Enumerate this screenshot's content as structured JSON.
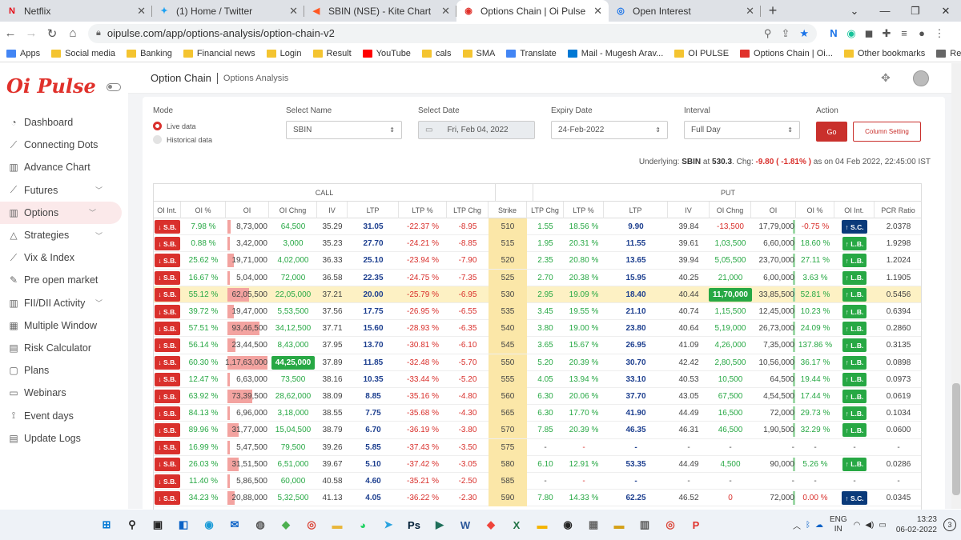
{
  "tabs": [
    {
      "title": "Netflix",
      "icon": "netflix-icon",
      "color": "#e50914",
      "glyph": "N"
    },
    {
      "title": "(1) Home / Twitter",
      "icon": "twitter-icon",
      "color": "#1da1f2",
      "glyph": "✦"
    },
    {
      "title": "SBIN (NSE) - Kite Chart",
      "icon": "kite-icon",
      "color": "#ff5722",
      "glyph": "◀"
    },
    {
      "title": "Options Chain | Oi Pulse",
      "icon": "oipulse-icon",
      "color": "#e0312b",
      "glyph": "◉"
    },
    {
      "title": "Open Interest",
      "icon": "globe-icon",
      "color": "#1a73e8",
      "glyph": "◎"
    }
  ],
  "address": {
    "url": "oipulse.com/app/options-analysis/option-chain-v2"
  },
  "bookmarks": [
    {
      "label": "Apps",
      "icon": "apps-icon",
      "color": "#4285f4"
    },
    {
      "label": "Social media",
      "icon": "folder-icon",
      "color": "#f4c430"
    },
    {
      "label": "Banking",
      "icon": "folder-icon",
      "color": "#f4c430"
    },
    {
      "label": "Financial news",
      "icon": "folder-icon",
      "color": "#f4c430"
    },
    {
      "label": "Login",
      "icon": "folder-icon",
      "color": "#f4c430"
    },
    {
      "label": "Result",
      "icon": "folder-icon",
      "color": "#f4c430"
    },
    {
      "label": "YouTube",
      "icon": "youtube-icon",
      "color": "#ff0000"
    },
    {
      "label": "cals",
      "icon": "folder-icon",
      "color": "#f4c430"
    },
    {
      "label": "SMA",
      "icon": "folder-icon",
      "color": "#f4c430"
    },
    {
      "label": "Translate",
      "icon": "translate-icon",
      "color": "#4285f4"
    },
    {
      "label": "Mail - Mugesh Arav...",
      "icon": "outlook-icon",
      "color": "#0078d4"
    },
    {
      "label": "OI PULSE",
      "icon": "folder-icon",
      "color": "#f4c430"
    },
    {
      "label": "Options Chain | Oi...",
      "icon": "oipulse-icon",
      "color": "#e0312b"
    }
  ],
  "bookmarks_right": [
    {
      "label": "Other bookmarks",
      "icon": "folder-icon",
      "color": "#f4c430"
    },
    {
      "label": "Reading list",
      "icon": "reading-list-icon",
      "color": "#666666"
    }
  ],
  "sidebar": {
    "logo": "Oi Pulse",
    "items": [
      {
        "label": "Dashboard",
        "icon": "dashboard-icon",
        "glyph": "◔",
        "chev": false
      },
      {
        "label": "Connecting Dots",
        "icon": "line-chart-icon",
        "glyph": "⟋",
        "chev": false
      },
      {
        "label": "Advance Chart",
        "icon": "bar-chart-icon",
        "glyph": "▥",
        "chev": false
      },
      {
        "label": "Futures",
        "icon": "futures-chart-icon",
        "glyph": "⟋",
        "chev": true
      },
      {
        "label": "Options",
        "icon": "options-chart-icon",
        "glyph": "▥",
        "chev": true,
        "active": true
      },
      {
        "label": "Strategies",
        "icon": "strategies-icon",
        "glyph": "△",
        "chev": true
      },
      {
        "label": "Vix & Index",
        "icon": "vix-icon",
        "glyph": "⟋",
        "chev": false
      },
      {
        "label": "Pre open market",
        "icon": "pre-open-icon",
        "glyph": "✎",
        "chev": false
      },
      {
        "label": "FII/DII Activity",
        "icon": "fii-dii-icon",
        "glyph": "▥",
        "chev": true
      },
      {
        "label": "Multiple Window",
        "icon": "multi-window-icon",
        "glyph": "▦",
        "chev": false
      },
      {
        "label": "Risk Calculator",
        "icon": "calculator-icon",
        "glyph": "▤",
        "chev": false
      },
      {
        "label": "Plans",
        "icon": "plans-icon",
        "glyph": "▢",
        "chev": false
      },
      {
        "label": "Webinars",
        "icon": "webinar-icon",
        "glyph": "▭",
        "chev": false
      },
      {
        "label": "Event days",
        "icon": "event-icon",
        "glyph": "⟟",
        "chev": false
      },
      {
        "label": "Update Logs",
        "icon": "logs-icon",
        "glyph": "▤",
        "chev": false
      }
    ]
  },
  "page": {
    "title": "Option Chain",
    "subtitle": "Options Analysis"
  },
  "filters": {
    "mode_label": "Mode",
    "mode_live": "Live data",
    "mode_hist": "Historical data",
    "name_label": "Select Name",
    "name_value": "SBIN",
    "date_label": "Select Date",
    "date_value": "Fri, Feb 04, 2022",
    "expiry_label": "Expiry Date",
    "expiry_value": "24-Feb-2022",
    "interval_label": "Interval",
    "interval_value": "Full Day",
    "action_label": "Action",
    "go_label": "Go",
    "column_label": "Column Setting"
  },
  "underlying": {
    "prefix": "Underlying:",
    "symbol": "SBIN",
    "at": "at",
    "price": "530.3",
    "chg_label": ". Chg:",
    "chg": "-9.80 ( -1.81% )",
    "suffix": "as on 04 Feb 2022, 22:45:00 IST"
  },
  "table": {
    "call_label": "CALL",
    "put_label": "PUT",
    "columns": [
      "OI Int.",
      "OI %",
      "OI",
      "OI Chng",
      "IV",
      "LTP",
      "LTP %",
      "LTP Chg",
      "Strike",
      "LTP Chg",
      "LTP %",
      "LTP",
      "IV",
      "OI Chng",
      "OI",
      "OI %",
      "OI Int.",
      "PCR Ratio"
    ],
    "rows": [
      {
        "cint": "↓ S.B.",
        "coip": "7.98 %",
        "coi": "8,73,000",
        "coil": 0.07,
        "coic": "64,500",
        "civ": "35.29",
        "cltp": "31.05",
        "cltpp": "-22.37 %",
        "cltpc": "-8.95",
        "strike": "510",
        "pltpc": "1.55",
        "pltpp": "18.56 %",
        "pltp": "9.90",
        "piv": "39.84",
        "poic": "-13,500",
        "poi": "17,79,000",
        "poil": 0.0,
        "poip": "-0.75 %",
        "pint": "↑ S.C.",
        "pint_t": "sc",
        "pcr": "2.0378",
        "pneg": true
      },
      {
        "cint": "↓ S.B.",
        "coip": "0.88 %",
        "coi": "3,42,000",
        "coil": 0.03,
        "coic": "3,000",
        "civ": "35.23",
        "cltp": "27.70",
        "cltpp": "-24.21 %",
        "cltpc": "-8.85",
        "strike": "515",
        "pltpc": "1.95",
        "pltpp": "20.31 %",
        "pltp": "11.55",
        "piv": "39.61",
        "poic": "1,03,500",
        "poi": "6,60,000",
        "poil": 0.02,
        "poip": "18.60 %",
        "pint": "↑ L.B.",
        "pint_t": "lb",
        "pcr": "1.9298"
      },
      {
        "cint": "↓ S.B.",
        "coip": "25.62 %",
        "coi": "19,71,000",
        "coil": 0.16,
        "coic": "4,02,000",
        "civ": "36.33",
        "cltp": "25.10",
        "cltpp": "-23.94 %",
        "cltpc": "-7.90",
        "strike": "520",
        "pltpc": "2.35",
        "pltpp": "20.80 %",
        "pltp": "13.65",
        "piv": "39.94",
        "poic": "5,05,500",
        "poi": "23,70,000",
        "poil": 0.06,
        "poip": "27.11 %",
        "pint": "↑ L.B.",
        "pint_t": "lb",
        "pcr": "1.2024"
      },
      {
        "cint": "↓ S.B.",
        "coip": "16.67 %",
        "coi": "5,04,000",
        "coil": 0.04,
        "coic": "72,000",
        "civ": "36.58",
        "cltp": "22.35",
        "cltpp": "-24.75 %",
        "cltpc": "-7.35",
        "strike": "525",
        "pltpc": "2.70",
        "pltpp": "20.38 %",
        "pltp": "15.95",
        "piv": "40.25",
        "poic": "21,000",
        "poi": "6,00,000",
        "poil": 0.02,
        "poip": "3.63 %",
        "pint": "↑ L.B.",
        "pint_t": "lb",
        "pcr": "1.1905"
      },
      {
        "cint": "↓ S.B.",
        "coip": "55.12 %",
        "coi": "62,05,500",
        "coil": 0.53,
        "coic": "22,05,000",
        "civ": "37.21",
        "cltp": "20.00",
        "cltpp": "-25.79 %",
        "cltpc": "-6.95",
        "strike": "530",
        "pltpc": "2.95",
        "pltpp": "19.09 %",
        "pltp": "18.40",
        "piv": "40.44",
        "poic": "11,70,000",
        "poichi": true,
        "poi": "33,85,500",
        "poil": 0.08,
        "poip": "52.81 %",
        "pint": "↑ L.B.",
        "pint_t": "lb",
        "pcr": "0.5456",
        "atm": true
      },
      {
        "cint": "↓ S.B.",
        "coip": "39.72 %",
        "coi": "19,47,000",
        "coil": 0.16,
        "coic": "5,53,500",
        "civ": "37.56",
        "cltp": "17.75",
        "cltpp": "-26.95 %",
        "cltpc": "-6.55",
        "strike": "535",
        "pltpc": "3.45",
        "pltpp": "19.55 %",
        "pltp": "21.10",
        "piv": "40.74",
        "poic": "1,15,500",
        "poi": "12,45,000",
        "poil": 0.03,
        "poip": "10.23 %",
        "pint": "↑ L.B.",
        "pint_t": "lb",
        "pcr": "0.6394"
      },
      {
        "cint": "↓ S.B.",
        "coip": "57.51 %",
        "coi": "93,46,500",
        "coil": 0.8,
        "coic": "34,12,500",
        "civ": "37.71",
        "cltp": "15.60",
        "cltpp": "-28.93 %",
        "cltpc": "-6.35",
        "strike": "540",
        "pltpc": "3.80",
        "pltpp": "19.00 %",
        "pltp": "23.80",
        "piv": "40.64",
        "poic": "5,19,000",
        "poi": "26,73,000",
        "poil": 0.07,
        "poip": "24.09 %",
        "pint": "↑ L.B.",
        "pint_t": "lb",
        "pcr": "0.2860"
      },
      {
        "cint": "↓ S.B.",
        "coip": "56.14 %",
        "coi": "23,44,500",
        "coil": 0.2,
        "coic": "8,43,000",
        "civ": "37.95",
        "cltp": "13.70",
        "cltpp": "-30.81 %",
        "cltpc": "-6.10",
        "strike": "545",
        "pltpc": "3.65",
        "pltpp": "15.67 %",
        "pltp": "26.95",
        "piv": "41.09",
        "poic": "4,26,000",
        "poi": "7,35,000",
        "poil": 0.02,
        "poip": "137.86 %",
        "pint": "↑ L.B.",
        "pint_t": "lb",
        "pcr": "0.3135"
      },
      {
        "cint": "↓ S.B.",
        "coip": "60.30 %",
        "coi": "1,17,63,000",
        "coil": 1.0,
        "coic": "44,25,000",
        "coichi": true,
        "civ": "37.89",
        "cltp": "11.85",
        "cltpp": "-32.48 %",
        "cltpc": "-5.70",
        "strike": "550",
        "pltpc": "5.20",
        "pltpp": "20.39 %",
        "pltp": "30.70",
        "piv": "42.42",
        "poic": "2,80,500",
        "poi": "10,56,000",
        "poil": 0.03,
        "poip": "36.17 %",
        "pint": "↑ L.B.",
        "pint_t": "lb",
        "pcr": "0.0898"
      },
      {
        "cint": "↓ S.B.",
        "coip": "12.47 %",
        "coi": "6,63,000",
        "coil": 0.05,
        "coic": "73,500",
        "civ": "38.16",
        "cltp": "10.35",
        "cltpp": "-33.44 %",
        "cltpc": "-5.20",
        "strike": "555",
        "pltpc": "4.05",
        "pltpp": "13.94 %",
        "pltp": "33.10",
        "piv": "40.53",
        "poic": "10,500",
        "poi": "64,500",
        "poil": 0.0,
        "poip": "19.44 %",
        "pint": "↑ L.B.",
        "pint_t": "lb",
        "pcr": "0.0973"
      },
      {
        "cint": "↓ S.B.",
        "coip": "63.92 %",
        "coi": "73,39,500",
        "coil": 0.62,
        "coic": "28,62,000",
        "civ": "38.09",
        "cltp": "8.85",
        "cltpp": "-35.16 %",
        "cltpc": "-4.80",
        "strike": "560",
        "pltpc": "6.30",
        "pltpp": "20.06 %",
        "pltp": "37.70",
        "piv": "43.05",
        "poic": "67,500",
        "poi": "4,54,500",
        "poil": 0.01,
        "poip": "17.44 %",
        "pint": "↑ L.B.",
        "pint_t": "lb",
        "pcr": "0.0619"
      },
      {
        "cint": "↓ S.B.",
        "coip": "84.13 %",
        "coi": "6,96,000",
        "coil": 0.06,
        "coic": "3,18,000",
        "civ": "38.55",
        "cltp": "7.75",
        "cltpp": "-35.68 %",
        "cltpc": "-4.30",
        "strike": "565",
        "pltpc": "6.30",
        "pltpp": "17.70 %",
        "pltp": "41.90",
        "piv": "44.49",
        "poic": "16,500",
        "poi": "72,000",
        "poil": 0.0,
        "poip": "29.73 %",
        "pint": "↑ L.B.",
        "pint_t": "lb",
        "pcr": "0.1034"
      },
      {
        "cint": "↓ S.B.",
        "coip": "89.96 %",
        "coi": "31,77,000",
        "coil": 0.27,
        "coic": "15,04,500",
        "civ": "38.79",
        "cltp": "6.70",
        "cltpp": "-36.19 %",
        "cltpc": "-3.80",
        "strike": "570",
        "pltpc": "7.85",
        "pltpp": "20.39 %",
        "pltp": "46.35",
        "piv": "46.31",
        "poic": "46,500",
        "poi": "1,90,500",
        "poil": 0.01,
        "poip": "32.29 %",
        "pint": "↑ L.B.",
        "pint_t": "lb",
        "pcr": "0.0600"
      },
      {
        "cint": "↓ S.B.",
        "coip": "16.99 %",
        "coi": "5,47,500",
        "coil": 0.04,
        "coic": "79,500",
        "civ": "39.26",
        "cltp": "5.85",
        "cltpp": "-37.43 %",
        "cltpc": "-3.50",
        "strike": "575",
        "pltpc": "-",
        "pltpp": "-",
        "pltp": "-",
        "piv": "-",
        "poic": "-",
        "poi": "-",
        "poil": 0.0,
        "poip": "-",
        "pint": "-",
        "pint_t": "none",
        "pcr": "-",
        "pdash": true
      },
      {
        "cint": "↓ S.B.",
        "coip": "26.03 %",
        "coi": "31,51,500",
        "coil": 0.27,
        "coic": "6,51,000",
        "civ": "39.67",
        "cltp": "5.10",
        "cltpp": "-37.42 %",
        "cltpc": "-3.05",
        "strike": "580",
        "pltpc": "6.10",
        "pltpp": "12.91 %",
        "pltp": "53.35",
        "piv": "44.49",
        "poic": "4,500",
        "poi": "90,000",
        "poil": 0.0,
        "poip": "5.26 %",
        "pint": "↑ L.B.",
        "pint_t": "lb",
        "pcr": "0.0286"
      },
      {
        "cint": "↓ S.B.",
        "coip": "11.40 %",
        "coi": "5,86,500",
        "coil": 0.05,
        "coic": "60,000",
        "civ": "40.58",
        "cltp": "4.60",
        "cltpp": "-35.21 %",
        "cltpc": "-2.50",
        "strike": "585",
        "pltpc": "-",
        "pltpp": "-",
        "pltp": "-",
        "piv": "-",
        "poic": "-",
        "poi": "-",
        "poil": 0.0,
        "poip": "-",
        "pint": "-",
        "pint_t": "none",
        "pcr": "-",
        "pdash": true
      },
      {
        "cint": "↓ S.B.",
        "coip": "34.23 %",
        "coi": "20,88,000",
        "coil": 0.18,
        "coic": "5,32,500",
        "civ": "41.13",
        "cltp": "4.05",
        "cltpp": "-36.22 %",
        "cltpc": "-2.30",
        "strike": "590",
        "pltpc": "7.80",
        "pltpp": "14.33 %",
        "pltp": "62.25",
        "piv": "46.52",
        "poic": "0",
        "poi": "72,000",
        "poil": 0.0,
        "poip": "0.00 %",
        "pint": "↑ S.C.",
        "pint_t": "sc",
        "pcr": "0.0345"
      }
    ]
  },
  "taskbar": [
    {
      "name": "windows-start-icon",
      "glyph": "⊞",
      "color": "#0078d4"
    },
    {
      "name": "search-icon",
      "glyph": "⚲",
      "color": "#222"
    },
    {
      "name": "task-view-icon",
      "glyph": "▣",
      "color": "#222"
    },
    {
      "name": "widgets-icon",
      "glyph": "◧",
      "color": "#0a62c7"
    },
    {
      "name": "edge-icon",
      "glyph": "◉",
      "color": "#1a9bd7"
    },
    {
      "name": "mail-icon",
      "glyph": "✉",
      "color": "#0a62c7"
    },
    {
      "name": "camera-icon",
      "glyph": "◍",
      "color": "#555"
    },
    {
      "name": "kite-app-icon",
      "glyph": "◆",
      "color": "#4caf50"
    },
    {
      "name": "chrome-icon",
      "glyph": "◎",
      "color": "#db4437"
    },
    {
      "name": "file-explorer-icon",
      "glyph": "▬",
      "color": "#e8b63a"
    },
    {
      "name": "whatsapp-icon",
      "glyph": "◕",
      "color": "#25d366"
    },
    {
      "name": "telegram-icon",
      "glyph": "➤",
      "color": "#2aa3df"
    },
    {
      "name": "photoshop-icon",
      "glyph": "Ps",
      "color": "#001e36"
    },
    {
      "name": "stremio-icon",
      "glyph": "▶",
      "color": "#1f6f5a"
    },
    {
      "name": "word-icon",
      "glyph": "W",
      "color": "#2b579a"
    },
    {
      "name": "anydesk-icon",
      "glyph": "◆",
      "color": "#ef443b"
    },
    {
      "name": "excel-icon",
      "glyph": "X",
      "color": "#217346"
    },
    {
      "name": "folder-app-icon",
      "glyph": "▬",
      "color": "#f5b400"
    },
    {
      "name": "obs-icon",
      "glyph": "◉",
      "color": "#222"
    },
    {
      "name": "calculator-app-icon",
      "glyph": "▦",
      "color": "#666"
    },
    {
      "name": "sticky-notes-icon",
      "glyph": "▬",
      "color": "#d4a017"
    },
    {
      "name": "chart-app-icon",
      "glyph": "▥",
      "color": "#555"
    },
    {
      "name": "chrome-profile-icon",
      "glyph": "◎",
      "color": "#db4437"
    },
    {
      "name": "pulse-app-icon",
      "glyph": "P",
      "color": "#e0312b"
    }
  ],
  "tray": {
    "lang1": "ENG",
    "lang2": "IN",
    "time": "13:23",
    "date": "06-02-2022",
    "notif": "3"
  }
}
